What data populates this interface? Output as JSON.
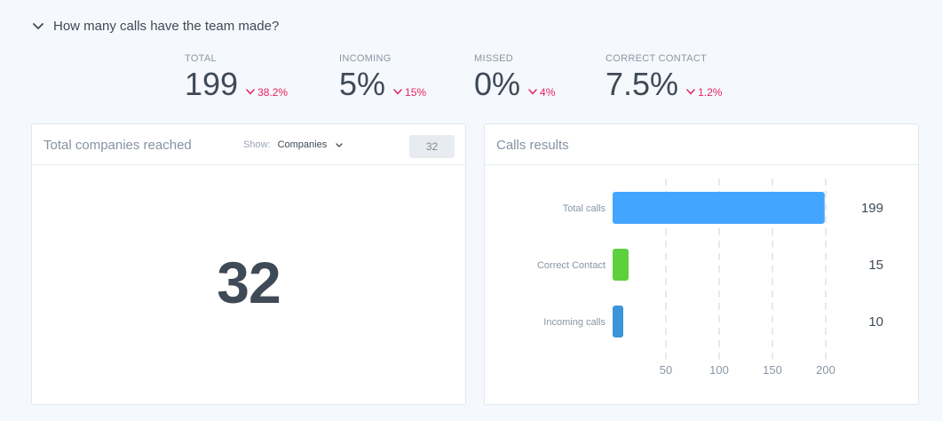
{
  "section": {
    "title": "How many calls have the team made?",
    "toggle_icon": "chevron-down-icon"
  },
  "stats": [
    {
      "label": "TOTAL",
      "value": "199",
      "delta": "38.2%",
      "direction": "down"
    },
    {
      "label": "INCOMING",
      "value": "5%",
      "delta": "15%",
      "direction": "down"
    },
    {
      "label": "MISSED",
      "value": "0%",
      "delta": "4%",
      "direction": "down"
    },
    {
      "label": "CORRECT CONTACT",
      "value": "7.5%",
      "delta": "1.2%",
      "direction": "down"
    }
  ],
  "companies_card": {
    "title": "Total companies reached",
    "show_label": "Show:",
    "show_value": "Companies",
    "count_badge": "32",
    "big_value": "32"
  },
  "calls_card": {
    "title": "Calls results"
  },
  "colors": {
    "negative_delta": "#e6245e",
    "total_calls": "#42a5ff",
    "correct_contact": "#5fd03d",
    "incoming_calls": "#3c95d8"
  },
  "chart_data": {
    "type": "bar",
    "orientation": "horizontal",
    "categories": [
      "Total calls",
      "Correct Contact",
      "Incoming calls"
    ],
    "values": [
      199,
      15,
      10
    ],
    "value_labels": [
      "199",
      "15",
      "10"
    ],
    "bar_colors": [
      "#42a5ff",
      "#5fd03d",
      "#3c95d8"
    ],
    "xticks": [
      50,
      100,
      150,
      200
    ],
    "xlim": [
      0,
      200
    ],
    "grid": "vertical dashed",
    "title": "",
    "xlabel": "",
    "ylabel": ""
  }
}
